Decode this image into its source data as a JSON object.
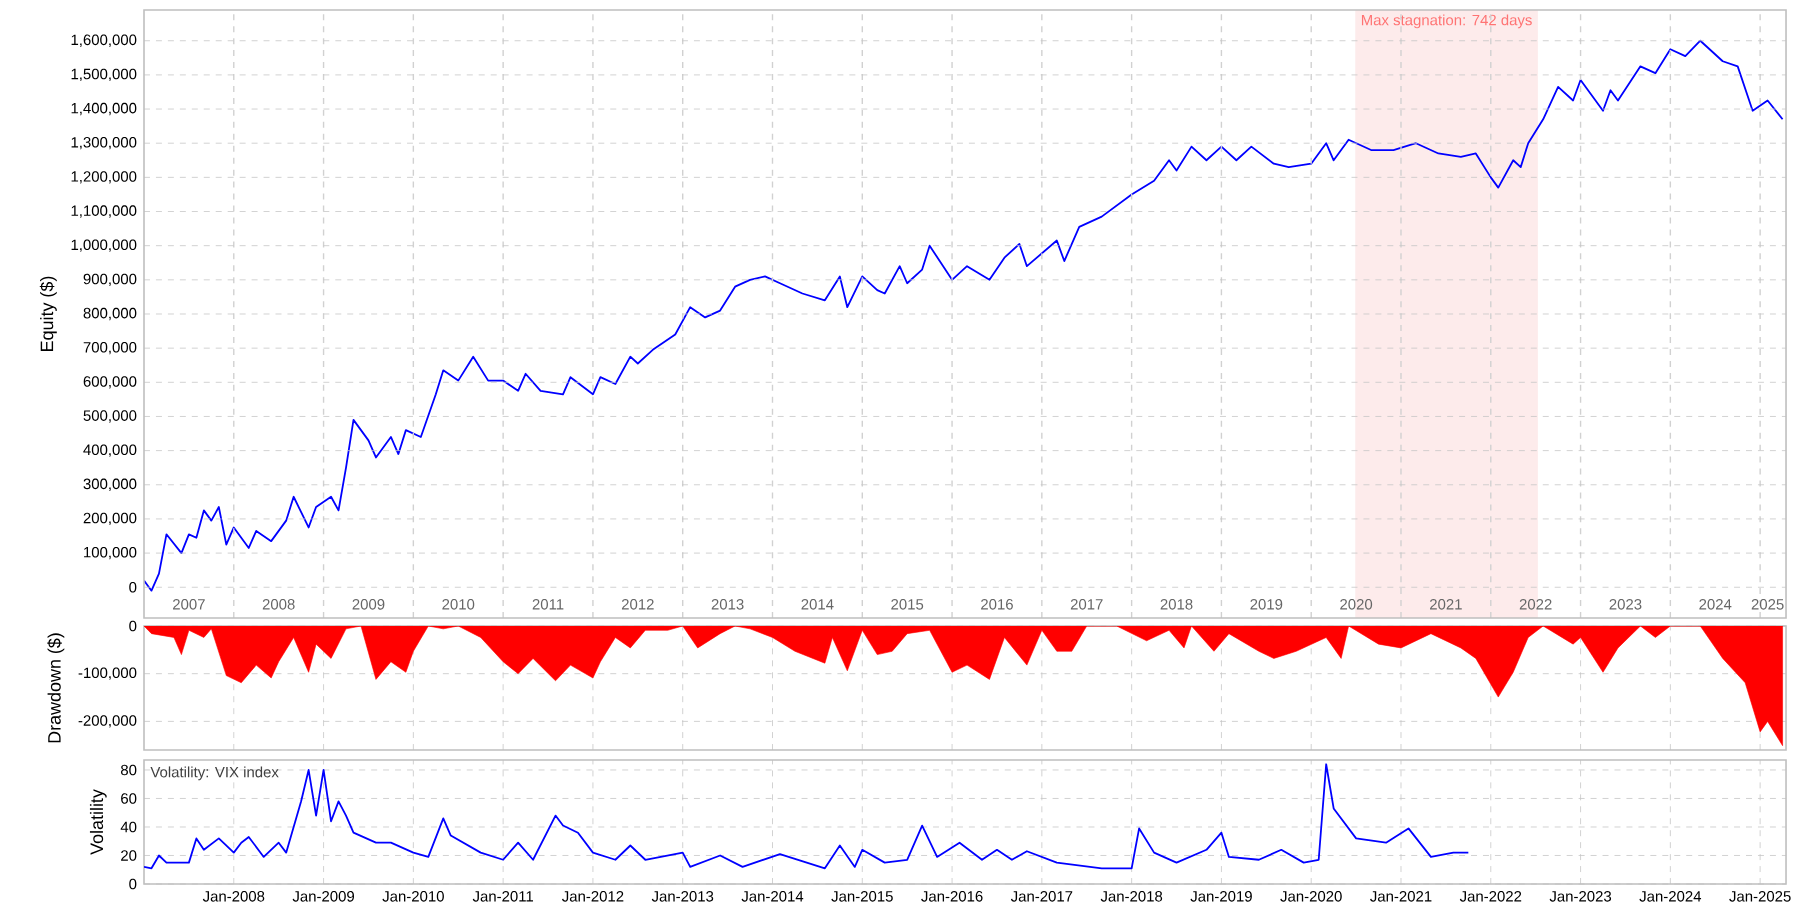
{
  "chart_data": [
    {
      "type": "line",
      "ylabel": "Equity ($)",
      "grid": true,
      "x": [
        "2007-01",
        "2007-02",
        "2007-03",
        "2007-04",
        "2007-06",
        "2007-07",
        "2007-08",
        "2007-09",
        "2007-10",
        "2007-11",
        "2007-12",
        "2008-01",
        "2008-03",
        "2008-04",
        "2008-06",
        "2008-08",
        "2008-09",
        "2008-11",
        "2008-12",
        "2009-02",
        "2009-03",
        "2009-04",
        "2009-05",
        "2009-07",
        "2009-08",
        "2009-10",
        "2009-11",
        "2009-12",
        "2010-02",
        "2010-04",
        "2010-05",
        "2010-07",
        "2010-09",
        "2010-11",
        "2011-01",
        "2011-03",
        "2011-04",
        "2011-06",
        "2011-09",
        "2011-10",
        "2012-01",
        "2012-02",
        "2012-04",
        "2012-06",
        "2012-07",
        "2012-09",
        "2012-12",
        "2013-02",
        "2013-04",
        "2013-06",
        "2013-08",
        "2013-10",
        "2013-12",
        "2014-02",
        "2014-05",
        "2014-08",
        "2014-10",
        "2014-11",
        "2015-01",
        "2015-03",
        "2015-04",
        "2015-06",
        "2015-07",
        "2015-09",
        "2015-10",
        "2016-01",
        "2016-03",
        "2016-06",
        "2016-08",
        "2016-10",
        "2016-11",
        "2017-03",
        "2017-04",
        "2017-06",
        "2017-09",
        "2018-01",
        "2018-04",
        "2018-06",
        "2018-07",
        "2018-09",
        "2018-11",
        "2019-01",
        "2019-03",
        "2019-05",
        "2019-08",
        "2019-10",
        "2020-01",
        "2020-03",
        "2020-04",
        "2020-06",
        "2020-09",
        "2020-12",
        "2021-03",
        "2021-06",
        "2021-09",
        "2021-11",
        "2022-01",
        "2022-02",
        "2022-04",
        "2022-05",
        "2022-06",
        "2022-08",
        "2022-10",
        "2022-12",
        "2023-01",
        "2023-04",
        "2023-05",
        "2023-06",
        "2023-09",
        "2023-11",
        "2024-01",
        "2024-03",
        "2024-05",
        "2024-08",
        "2024-10",
        "2024-12",
        "2025-02",
        "2025-04"
      ],
      "series": [
        {
          "color": "#0000ff",
          "values": [
            20000,
            -10000,
            40000,
            155000,
            100000,
            155000,
            145000,
            225000,
            195000,
            235000,
            125000,
            175000,
            115000,
            165000,
            135000,
            195000,
            265000,
            175000,
            235000,
            265000,
            225000,
            350000,
            490000,
            430000,
            380000,
            440000,
            390000,
            460000,
            440000,
            565000,
            635000,
            605000,
            675000,
            605000,
            605000,
            575000,
            625000,
            575000,
            565000,
            615000,
            565000,
            615000,
            595000,
            675000,
            655000,
            695000,
            740000,
            820000,
            790000,
            810000,
            880000,
            900000,
            910000,
            890000,
            860000,
            840000,
            910000,
            820000,
            910000,
            870000,
            860000,
            940000,
            890000,
            930000,
            1000000,
            900000,
            940000,
            900000,
            965000,
            1005000,
            940000,
            1015000,
            955000,
            1055000,
            1085000,
            1150000,
            1190000,
            1250000,
            1220000,
            1290000,
            1250000,
            1290000,
            1250000,
            1290000,
            1240000,
            1230000,
            1240000,
            1300000,
            1250000,
            1310000,
            1280000,
            1280000,
            1300000,
            1270000,
            1260000,
            1270000,
            1200000,
            1170000,
            1250000,
            1230000,
            1300000,
            1370000,
            1465000,
            1425000,
            1485000,
            1395000,
            1455000,
            1425000,
            1525000,
            1505000,
            1575000,
            1555000,
            1600000,
            1540000,
            1525000,
            1395000,
            1425000,
            1370000
          ]
        }
      ],
      "xlim": [
        "2007-01",
        "2025-04-15"
      ],
      "ylim": [
        -90000,
        1690000
      ],
      "xticks": [
        {
          "value": "2007-07",
          "label": "2007"
        },
        {
          "value": "2008-07",
          "label": "2008"
        },
        {
          "value": "2009-07",
          "label": "2009"
        },
        {
          "value": "2010-07",
          "label": "2010"
        },
        {
          "value": "2011-07",
          "label": "2011"
        },
        {
          "value": "2012-07",
          "label": "2012"
        },
        {
          "value": "2013-07",
          "label": "2013"
        },
        {
          "value": "2014-07",
          "label": "2014"
        },
        {
          "value": "2015-07",
          "label": "2015"
        },
        {
          "value": "2016-07",
          "label": "2016"
        },
        {
          "value": "2017-07",
          "label": "2017"
        },
        {
          "value": "2018-07",
          "label": "2018"
        },
        {
          "value": "2019-07",
          "label": "2019"
        },
        {
          "value": "2020-07",
          "label": "2020"
        },
        {
          "value": "2021-07",
          "label": "2021"
        },
        {
          "value": "2022-07",
          "label": "2022"
        },
        {
          "value": "2023-07",
          "label": "2023"
        },
        {
          "value": "2024-07",
          "label": "2024"
        },
        {
          "value": "2025-02",
          "label": "2025"
        },
        {
          "value": "2008-01",
          "label": null
        },
        {
          "value": "2009-01",
          "label": null
        },
        {
          "value": "2010-01",
          "label": null
        },
        {
          "value": "2011-01",
          "label": null
        },
        {
          "value": "2012-01",
          "label": null
        },
        {
          "value": "2013-01",
          "label": null
        },
        {
          "value": "2014-01",
          "label": null
        },
        {
          "value": "2015-01",
          "label": null
        },
        {
          "value": "2016-01",
          "label": null
        },
        {
          "value": "2017-01",
          "label": null
        },
        {
          "value": "2018-01",
          "label": null
        },
        {
          "value": "2019-01",
          "label": null
        },
        {
          "value": "2020-01",
          "label": null
        },
        {
          "value": "2021-01",
          "label": null
        },
        {
          "value": "2022-01",
          "label": null
        },
        {
          "value": "2023-01",
          "label": null
        },
        {
          "value": "2024-01",
          "label": null
        },
        {
          "value": "2025-01",
          "label": null
        }
      ],
      "yticks": [
        0,
        {
          "value": 100000,
          "label": "100,000"
        },
        {
          "value": 200000,
          "label": "200,000"
        },
        {
          "value": 300000,
          "label": "300,000"
        },
        {
          "value": 400000,
          "label": "400,000"
        },
        {
          "value": 500000,
          "label": "500,000"
        },
        {
          "value": 600000,
          "label": "600,000"
        },
        {
          "value": 700000,
          "label": "700,000"
        },
        {
          "value": 800000,
          "label": "800,000"
        },
        {
          "value": 900000,
          "label": "900,000"
        },
        {
          "value": 1000000,
          "label": "1,000,000"
        },
        {
          "value": 1100000,
          "label": "1,100,000"
        },
        {
          "value": 1200000,
          "label": "1,200,000"
        },
        {
          "value": 1300000,
          "label": "1,300,000"
        },
        {
          "value": 1400000,
          "label": "1,400,000"
        },
        {
          "value": 1500000,
          "label": "1,500,000"
        },
        {
          "value": 1600000,
          "label": "1,600,000"
        }
      ],
      "bands": [
        {
          "axis": "x",
          "from": "2020-06-28",
          "to": "2022-07-10",
          "label": "Max stagnation: 742 days",
          "color": "#fdebeb"
        }
      ]
    },
    {
      "type": "area",
      "ylabel": "Drawdown ($)",
      "grid": true,
      "tick_labels": "y",
      "x": [
        "2007-01",
        "2007-02",
        "2007-05",
        "2007-06",
        "2007-07",
        "2007-09",
        "2007-10",
        "2007-12",
        "2008-02",
        "2008-04",
        "2008-06",
        "2008-07",
        "2008-09",
        "2008-11",
        "2008-12",
        "2009-02",
        "2009-04",
        "2009-06",
        "2009-08",
        "2009-10",
        "2009-12",
        "2010-01",
        "2010-03",
        "2010-05",
        "2010-07",
        "2010-10",
        "2011-01",
        "2011-03",
        "2011-05",
        "2011-08",
        "2011-10",
        "2012-01",
        "2012-02",
        "2012-04",
        "2012-06",
        "2012-08",
        "2012-11",
        "2013-01",
        "2013-03",
        "2013-06",
        "2013-08",
        "2013-10",
        "2014-01",
        "2014-04",
        "2014-08",
        "2014-09",
        "2014-11",
        "2015-01",
        "2015-03",
        "2015-05",
        "2015-07",
        "2015-10",
        "2016-01",
        "2016-03",
        "2016-06",
        "2016-08",
        "2016-11",
        "2017-01",
        "2017-03",
        "2017-05",
        "2017-07",
        "2017-11",
        "2018-03",
        "2018-06",
        "2018-08",
        "2018-09",
        "2018-12",
        "2019-02",
        "2019-06",
        "2019-08",
        "2019-11",
        "2020-03",
        "2020-05",
        "2020-06",
        "2020-10",
        "2021-01",
        "2021-05",
        "2021-09",
        "2021-11",
        "2022-02",
        "2022-04",
        "2022-06",
        "2022-08",
        "2022-12",
        "2023-01",
        "2023-04",
        "2023-06",
        "2023-09",
        "2023-11",
        "2024-01",
        "2024-05",
        "2024-08",
        "2024-11",
        "2025-01",
        "2025-02",
        "2025-04"
      ],
      "series": [
        {
          "color": "#ff0000",
          "values": [
            0,
            -16000,
            -24000,
            -60000,
            -9000,
            -24000,
            -6000,
            -104000,
            -119000,
            -82000,
            -109000,
            -75000,
            -24000,
            -97000,
            -38000,
            -68000,
            -6000,
            0,
            -112000,
            -75000,
            -97000,
            -53000,
            0,
            -6000,
            0,
            -24000,
            -75000,
            -100000,
            -68000,
            -115000,
            -82000,
            -109000,
            -75000,
            -24000,
            -46000,
            -9000,
            -9000,
            0,
            -46000,
            -16000,
            0,
            -6000,
            -24000,
            -53000,
            -78000,
            -24000,
            -94000,
            -9000,
            -60000,
            -53000,
            -16000,
            -9000,
            -97000,
            -82000,
            -112000,
            -24000,
            -82000,
            -9000,
            -53000,
            -53000,
            0,
            0,
            -31000,
            -9000,
            -46000,
            0,
            -53000,
            -16000,
            -53000,
            -68000,
            -53000,
            -24000,
            -68000,
            0,
            -38000,
            -46000,
            -16000,
            -46000,
            -68000,
            -149000,
            -97000,
            -24000,
            0,
            -38000,
            -24000,
            -97000,
            -46000,
            0,
            -24000,
            0,
            0,
            -68000,
            -119000,
            -222000,
            -200000,
            -251000
          ]
        }
      ],
      "xlim": [
        "2007-01",
        "2025-04-15"
      ],
      "ylim": [
        -260000,
        0
      ],
      "xticks": [
        {
          "value": "2008-01",
          "label": null
        },
        {
          "value": "2009-01",
          "label": null
        },
        {
          "value": "2010-01",
          "label": null
        },
        {
          "value": "2011-01",
          "label": null
        },
        {
          "value": "2012-01",
          "label": null
        },
        {
          "value": "2013-01",
          "label": null
        },
        {
          "value": "2014-01",
          "label": null
        },
        {
          "value": "2015-01",
          "label": null
        },
        {
          "value": "2016-01",
          "label": null
        },
        {
          "value": "2017-01",
          "label": null
        },
        {
          "value": "2018-01",
          "label": null
        },
        {
          "value": "2019-01",
          "label": null
        },
        {
          "value": "2020-01",
          "label": null
        },
        {
          "value": "2021-01",
          "label": null
        },
        {
          "value": "2022-01",
          "label": null
        },
        {
          "value": "2023-01",
          "label": null
        },
        {
          "value": "2024-01",
          "label": null
        },
        {
          "value": "2025-01",
          "label": null
        }
      ],
      "yticks": [
        0,
        {
          "value": -100000,
          "label": "-100,000"
        },
        {
          "value": -200000,
          "label": "-200,000"
        }
      ]
    },
    {
      "type": "line",
      "ylabel": "Volatility",
      "grid": true,
      "annotations": [
        "Volatility: VIX index"
      ],
      "x": [
        "2007-01",
        "2007-02",
        "2007-03",
        "2007-04",
        "2007-07",
        "2007-08",
        "2007-09",
        "2007-11",
        "2008-01",
        "2008-02",
        "2008-03",
        "2008-05",
        "2008-07",
        "2008-08",
        "2008-10",
        "2008-11",
        "2008-12",
        "2009-01",
        "2009-02",
        "2009-03",
        "2009-04",
        "2009-05",
        "2009-08",
        "2009-10",
        "2010-01",
        "2010-03",
        "2010-05",
        "2010-06",
        "2010-10",
        "2011-01",
        "2011-03",
        "2011-05",
        "2011-08",
        "2011-09",
        "2011-11",
        "2012-01",
        "2012-04",
        "2012-06",
        "2012-08",
        "2013-01",
        "2013-02",
        "2013-06",
        "2013-09",
        "2014-02",
        "2014-08",
        "2014-10",
        "2014-12",
        "2015-01",
        "2015-04",
        "2015-07",
        "2015-09",
        "2015-11",
        "2016-02",
        "2016-05",
        "2016-07",
        "2016-09",
        "2016-11",
        "2017-03",
        "2017-09",
        "2018-01",
        "2018-02",
        "2018-04",
        "2018-07",
        "2018-11",
        "2019-01",
        "2019-02",
        "2019-06",
        "2019-09",
        "2019-12",
        "2020-02",
        "2020-03",
        "2020-04",
        "2020-07",
        "2020-11",
        "2021-02",
        "2021-05",
        "2021-08",
        "2021-10"
      ],
      "series": [
        {
          "color": "#0000ff",
          "values": [
            12,
            11,
            20,
            15,
            15,
            32,
            24,
            32,
            22,
            29,
            33,
            19,
            29,
            22,
            58,
            80,
            48,
            80,
            44,
            58,
            48,
            36,
            29,
            29,
            22,
            19,
            46,
            34,
            22,
            17,
            29,
            17,
            48,
            41,
            36,
            22,
            17,
            27,
            17,
            22,
            12,
            20,
            12,
            21,
            11,
            27,
            12,
            24,
            15,
            17,
            41,
            19,
            29,
            17,
            24,
            17,
            23,
            15,
            11,
            11,
            39,
            22,
            15,
            24,
            36,
            19,
            17,
            24,
            15,
            17,
            84,
            53,
            32,
            29,
            39,
            19,
            22,
            22
          ]
        }
      ],
      "xlim": [
        "2007-01",
        "2025-04-15"
      ],
      "ylim": [
        0,
        87
      ],
      "xticks": [
        {
          "value": "2008-01",
          "label": "Jan-2008"
        },
        {
          "value": "2009-01",
          "label": "Jan-2009"
        },
        {
          "value": "2010-01",
          "label": "Jan-2010"
        },
        {
          "value": "2011-01",
          "label": "Jan-2011"
        },
        {
          "value": "2012-01",
          "label": "Jan-2012"
        },
        {
          "value": "2013-01",
          "label": "Jan-2013"
        },
        {
          "value": "2014-01",
          "label": "Jan-2014"
        },
        {
          "value": "2015-01",
          "label": "Jan-2015"
        },
        {
          "value": "2016-01",
          "label": "Jan-2016"
        },
        {
          "value": "2017-01",
          "label": "Jan-2017"
        },
        {
          "value": "2018-01",
          "label": "Jan-2018"
        },
        {
          "value": "2019-01",
          "label": "Jan-2019"
        },
        {
          "value": "2020-01",
          "label": "Jan-2020"
        },
        {
          "value": "2021-01",
          "label": "Jan-2021"
        },
        {
          "value": "2022-01",
          "label": "Jan-2022"
        },
        {
          "value": "2023-01",
          "label": "Jan-2023"
        },
        {
          "value": "2024-01",
          "label": "Jan-2024"
        },
        {
          "value": "2025-01",
          "label": "Jan-2025"
        }
      ],
      "yticks": [
        0,
        20,
        40,
        60,
        80
      ]
    }
  ]
}
